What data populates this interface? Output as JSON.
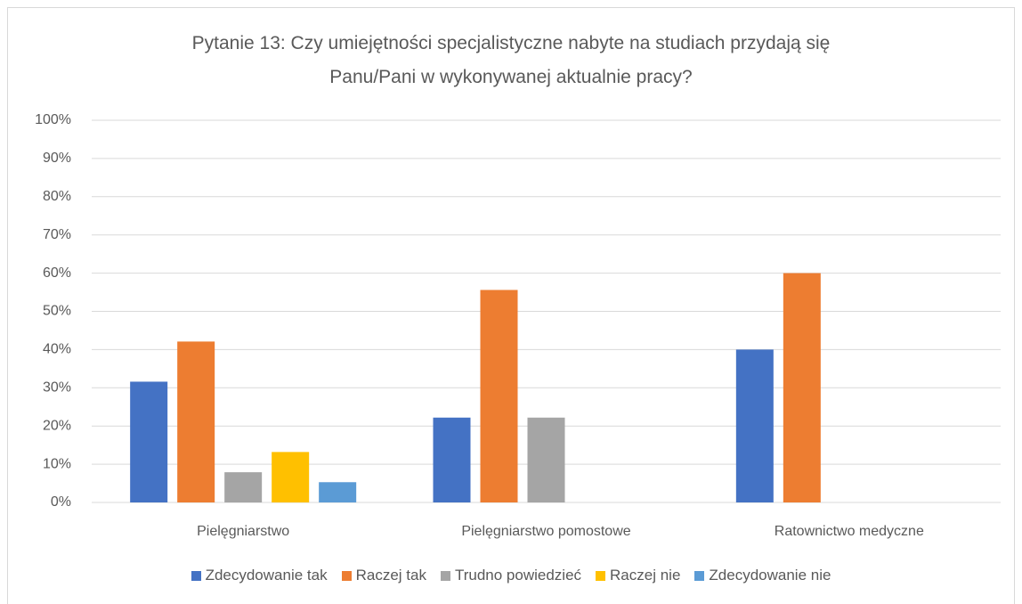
{
  "chart_data": {
    "type": "bar",
    "title": "Pytanie 13: Czy umiejętności specjalistyczne nabyte na studiach przydają się Panu/Pani w wykonywanej aktualnie pracy?",
    "categories": [
      "Pielęgniarstwo",
      "Pielęgniarstwo pomostowe",
      "Ratownictwo medyczne"
    ],
    "series": [
      {
        "name": "Zdecydowanie tak",
        "color": "#4472c4",
        "values": [
          31.6,
          22.2,
          40
        ]
      },
      {
        "name": "Raczej tak",
        "color": "#ed7d31",
        "values": [
          42.1,
          55.6,
          60
        ]
      },
      {
        "name": "Trudno powiedzieć",
        "color": "#a5a5a5",
        "values": [
          7.9,
          22.2,
          0
        ]
      },
      {
        "name": "Raczej nie",
        "color": "#ffc000",
        "values": [
          13.2,
          0,
          0
        ]
      },
      {
        "name": "Zdecydowanie nie",
        "color": "#5b9bd5",
        "values": [
          5.3,
          0,
          0
        ]
      }
    ],
    "ylim": [
      0,
      100
    ],
    "yticks": [
      {
        "value": 0,
        "label": "0%"
      },
      {
        "value": 10,
        "label": "10%"
      },
      {
        "value": 20,
        "label": "20%"
      },
      {
        "value": 30,
        "label": "30%"
      },
      {
        "value": 40,
        "label": "40%"
      },
      {
        "value": 50,
        "label": "50%"
      },
      {
        "value": 60,
        "label": "60%"
      },
      {
        "value": 70,
        "label": "70%"
      },
      {
        "value": 80,
        "label": "80%"
      },
      {
        "value": 90,
        "label": "90%"
      },
      {
        "value": 100,
        "label": "100%"
      }
    ],
    "grid": true,
    "legend": "bottom"
  }
}
